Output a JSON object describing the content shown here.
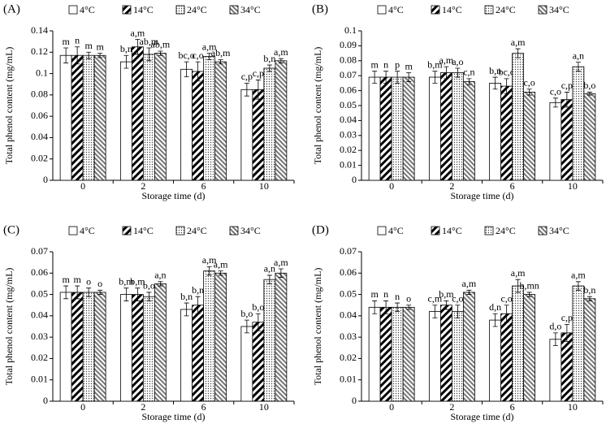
{
  "chart_data": [
    {
      "type": "bar",
      "panel_label": "(A)",
      "x_label": "Storage time (d)",
      "y_label": "Total phenol content (mg/mL)",
      "categories": [
        "0",
        "2",
        "6",
        "10"
      ],
      "ylim": [
        0,
        0.14
      ],
      "yticks": [
        0,
        0.02,
        0.04,
        0.06,
        0.08,
        0.1,
        0.12,
        0.14
      ],
      "series": [
        {
          "name": "4°C",
          "color": "#ffffff",
          "pattern": "none",
          "values": [
            0.117,
            0.111,
            0.104,
            0.085
          ],
          "errors": [
            0.007,
            0.006,
            0.007,
            0.006
          ],
          "letters": [
            "m",
            "b,n",
            "bc,o",
            "c,p"
          ]
        },
        {
          "name": "14°C",
          "color": "#000000",
          "pattern": "hatch-dense",
          "values": [
            0.117,
            0.125,
            0.102,
            0.085
          ],
          "errors": [
            0.008,
            0.007,
            0.009,
            0.009
          ],
          "letters": [
            "n",
            "a,m",
            "c,o",
            "c,p"
          ]
        },
        {
          "name": "24°C",
          "color": "#555555",
          "pattern": "dots",
          "values": [
            0.117,
            0.118,
            0.116,
            0.105
          ],
          "errors": [
            0.003,
            0.006,
            0.003,
            0.003
          ],
          "letters": [
            "m",
            "ab,m",
            "a,m",
            "b,n"
          ]
        },
        {
          "name": "34°C",
          "color": "#777777",
          "pattern": "hatch-light",
          "values": [
            0.117,
            0.119,
            0.111,
            0.112
          ],
          "errors": [
            0.002,
            0.002,
            0.002,
            0.002
          ],
          "letters": [
            "m",
            "ab,m",
            "ab,m",
            "a,m"
          ]
        }
      ]
    },
    {
      "type": "bar",
      "panel_label": "(B)",
      "x_label": "Storage time (d)",
      "y_label": "Total phenol content (mg/mL)",
      "categories": [
        "0",
        "2",
        "6",
        "10"
      ],
      "ylim": [
        0,
        0.1
      ],
      "yticks": [
        0,
        0.01,
        0.02,
        0.03,
        0.04,
        0.05,
        0.06,
        0.07,
        0.08,
        0.09,
        0.1
      ],
      "series": [
        {
          "name": "4°C",
          "color": "#ffffff",
          "pattern": "none",
          "values": [
            0.069,
            0.069,
            0.065,
            0.052
          ],
          "errors": [
            0.004,
            0.004,
            0.004,
            0.003
          ],
          "letters": [
            "m",
            "b,m",
            "b,n",
            "c,o"
          ]
        },
        {
          "name": "14°C",
          "color": "#000000",
          "pattern": "hatch-dense",
          "values": [
            0.069,
            0.072,
            0.063,
            0.054
          ],
          "errors": [
            0.004,
            0.004,
            0.005,
            0.005
          ],
          "letters": [
            "n",
            "a,m",
            "bc,o",
            "c,p"
          ]
        },
        {
          "name": "24°C",
          "color": "#555555",
          "pattern": "dots",
          "values": [
            0.069,
            0.072,
            0.085,
            0.076
          ],
          "errors": [
            0.004,
            0.003,
            0.003,
            0.003
          ],
          "letters": [
            "p",
            "a,o",
            "a,m",
            "a,n"
          ]
        },
        {
          "name": "34°C",
          "color": "#777777",
          "pattern": "hatch-light",
          "values": [
            0.069,
            0.066,
            0.059,
            0.058
          ],
          "errors": [
            0.003,
            0.002,
            0.002,
            0.001
          ],
          "letters": [
            "m",
            "c,n",
            "c,o",
            "b,o"
          ]
        }
      ]
    },
    {
      "type": "bar",
      "panel_label": "(C)",
      "x_label": "Storage time (d)",
      "y_label": "Total phenol content (mg/mL)",
      "categories": [
        "0",
        "2",
        "6",
        "10"
      ],
      "ylim": [
        0,
        0.07
      ],
      "yticks": [
        0,
        0.01,
        0.02,
        0.03,
        0.04,
        0.05,
        0.06,
        0.07
      ],
      "series": [
        {
          "name": "4°C",
          "color": "#ffffff",
          "pattern": "none",
          "values": [
            0.051,
            0.05,
            0.043,
            0.035
          ],
          "errors": [
            0.003,
            0.003,
            0.003,
            0.003
          ],
          "letters": [
            "m",
            "b,m",
            "b,n",
            "b,o"
          ]
        },
        {
          "name": "14°C",
          "color": "#000000",
          "pattern": "hatch-dense",
          "values": [
            0.051,
            0.05,
            0.045,
            0.037
          ],
          "errors": [
            0.003,
            0.003,
            0.004,
            0.004
          ],
          "letters": [
            "m",
            "b,m",
            "b,n",
            "b,o"
          ]
        },
        {
          "name": "24°C",
          "color": "#555555",
          "pattern": "dots",
          "values": [
            0.051,
            0.049,
            0.061,
            0.057
          ],
          "errors": [
            0.002,
            0.002,
            0.002,
            0.002
          ],
          "letters": [
            "o",
            "b,o",
            "a,m",
            "a,n"
          ]
        },
        {
          "name": "34°C",
          "color": "#777777",
          "pattern": "hatch-light",
          "values": [
            0.051,
            0.055,
            0.06,
            0.06
          ],
          "errors": [
            0.001,
            0.001,
            0.001,
            0.002
          ],
          "letters": [
            "o",
            "a,n",
            "a,m",
            "a,m"
          ]
        }
      ]
    },
    {
      "type": "bar",
      "panel_label": "(D)",
      "x_label": "Storage time (d)",
      "y_label": "Total phenol content (mg/mL)",
      "categories": [
        "0",
        "2",
        "6",
        "10"
      ],
      "ylim": [
        0,
        0.07
      ],
      "yticks": [
        0,
        0.01,
        0.02,
        0.03,
        0.04,
        0.05,
        0.06,
        0.07
      ],
      "series": [
        {
          "name": "4°C",
          "color": "#ffffff",
          "pattern": "none",
          "values": [
            0.044,
            0.042,
            0.038,
            0.029
          ],
          "errors": [
            0.003,
            0.003,
            0.003,
            0.003
          ],
          "letters": [
            "m",
            "c,m",
            "d,n",
            "d,o"
          ]
        },
        {
          "name": "14°C",
          "color": "#000000",
          "pattern": "hatch-dense",
          "values": [
            0.044,
            0.045,
            0.041,
            0.032
          ],
          "errors": [
            0.003,
            0.002,
            0.004,
            0.004
          ],
          "letters": [
            "n",
            "b,m",
            "c,o",
            "c,p"
          ]
        },
        {
          "name": "24°C",
          "color": "#555555",
          "pattern": "dots",
          "values": [
            0.044,
            0.042,
            0.054,
            0.054
          ],
          "errors": [
            0.002,
            0.003,
            0.003,
            0.002
          ],
          "letters": [
            "n",
            "c,o",
            "a,m",
            "a,m"
          ]
        },
        {
          "name": "34°C",
          "color": "#777777",
          "pattern": "hatch-light",
          "values": [
            0.044,
            0.051,
            0.05,
            0.048
          ],
          "errors": [
            0.001,
            0.001,
            0.001,
            0.001
          ],
          "letters": [
            "o",
            "a,m",
            "b,mn",
            "b,n"
          ]
        }
      ]
    }
  ]
}
